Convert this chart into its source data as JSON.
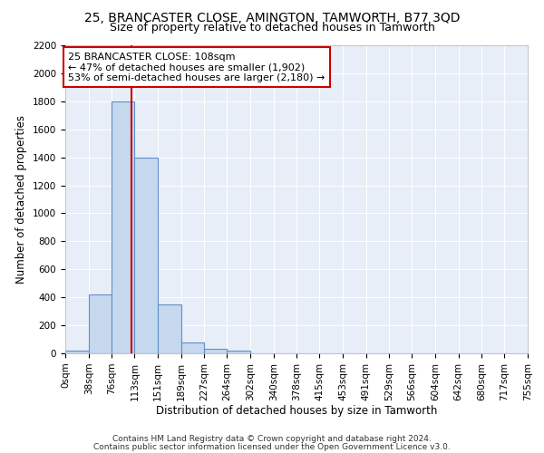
{
  "title": "25, BRANCASTER CLOSE, AMINGTON, TAMWORTH, B77 3QD",
  "subtitle": "Size of property relative to detached houses in Tamworth",
  "xlabel": "Distribution of detached houses by size in Tamworth",
  "ylabel": "Number of detached properties",
  "bin_edges": [
    0,
    38,
    76,
    113,
    151,
    189,
    227,
    264,
    302,
    340,
    378,
    415,
    453,
    491,
    529,
    566,
    604,
    642,
    680,
    717,
    755
  ],
  "bar_heights": [
    20,
    420,
    1800,
    1400,
    350,
    80,
    30,
    20,
    0,
    0,
    0,
    0,
    0,
    0,
    0,
    0,
    0,
    0,
    0,
    0
  ],
  "bar_color": "#c5d8ee",
  "bar_edgecolor": "#6090c8",
  "property_size": 108,
  "vline_color": "#cc0000",
  "annotation_line1": "25 BRANCASTER CLOSE: 108sqm",
  "annotation_line2": "← 47% of detached houses are smaller (1,902)",
  "annotation_line3": "53% of semi-detached houses are larger (2,180) →",
  "annotation_box_color": "#ffffff",
  "annotation_box_edgecolor": "#cc0000",
  "ylim": [
    0,
    2200
  ],
  "yticks": [
    0,
    200,
    400,
    600,
    800,
    1000,
    1200,
    1400,
    1600,
    1800,
    2000,
    2200
  ],
  "tick_labels": [
    "0sqm",
    "38sqm",
    "76sqm",
    "113sqm",
    "151sqm",
    "189sqm",
    "227sqm",
    "264sqm",
    "302sqm",
    "340sqm",
    "378sqm",
    "415sqm",
    "453sqm",
    "491sqm",
    "529sqm",
    "566sqm",
    "604sqm",
    "642sqm",
    "680sqm",
    "717sqm",
    "755sqm"
  ],
  "background_color": "#e8eef8",
  "footer_line1": "Contains HM Land Registry data © Crown copyright and database right 2024.",
  "footer_line2": "Contains public sector information licensed under the Open Government Licence v3.0.",
  "title_fontsize": 10,
  "subtitle_fontsize": 9,
  "label_fontsize": 8.5,
  "tick_fontsize": 7.5,
  "annotation_fontsize": 8,
  "footer_fontsize": 6.5
}
